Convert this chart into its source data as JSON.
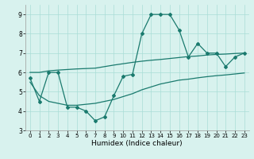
{
  "xlabel": "Humidex (Indice chaleur)",
  "x": [
    0,
    1,
    2,
    3,
    4,
    5,
    6,
    7,
    8,
    9,
    10,
    11,
    12,
    13,
    14,
    15,
    16,
    17,
    18,
    19,
    20,
    21,
    22,
    23
  ],
  "main_line": [
    5.7,
    4.5,
    6.0,
    6.0,
    4.2,
    4.2,
    4.0,
    3.5,
    3.7,
    4.8,
    5.8,
    5.9,
    8.0,
    9.0,
    9.0,
    9.0,
    8.2,
    6.8,
    7.5,
    7.0,
    7.0,
    6.3,
    6.8,
    7.0
  ],
  "upper_line": [
    6.0,
    6.0,
    6.08,
    6.12,
    6.15,
    6.18,
    6.2,
    6.22,
    6.3,
    6.38,
    6.45,
    6.52,
    6.58,
    6.63,
    6.67,
    6.72,
    6.77,
    6.82,
    6.85,
    6.9,
    6.93,
    6.95,
    6.98,
    7.0
  ],
  "lower_line": [
    5.5,
    4.8,
    4.5,
    4.4,
    4.3,
    4.3,
    4.35,
    4.4,
    4.5,
    4.6,
    4.75,
    4.9,
    5.1,
    5.25,
    5.4,
    5.5,
    5.6,
    5.65,
    5.72,
    5.78,
    5.83,
    5.87,
    5.92,
    5.97
  ],
  "line_color": "#1a7a6e",
  "bg_color": "#d8f2ee",
  "grid_color": "#aaddd6",
  "ylim": [
    3.0,
    9.5
  ],
  "yticks": [
    3,
    4,
    5,
    6,
    7,
    8,
    9
  ],
  "xlim": [
    -0.5,
    23.5
  ],
  "xticks": [
    0,
    1,
    2,
    3,
    4,
    5,
    6,
    7,
    8,
    9,
    10,
    11,
    12,
    13,
    14,
    15,
    16,
    17,
    18,
    19,
    20,
    21,
    22,
    23
  ]
}
